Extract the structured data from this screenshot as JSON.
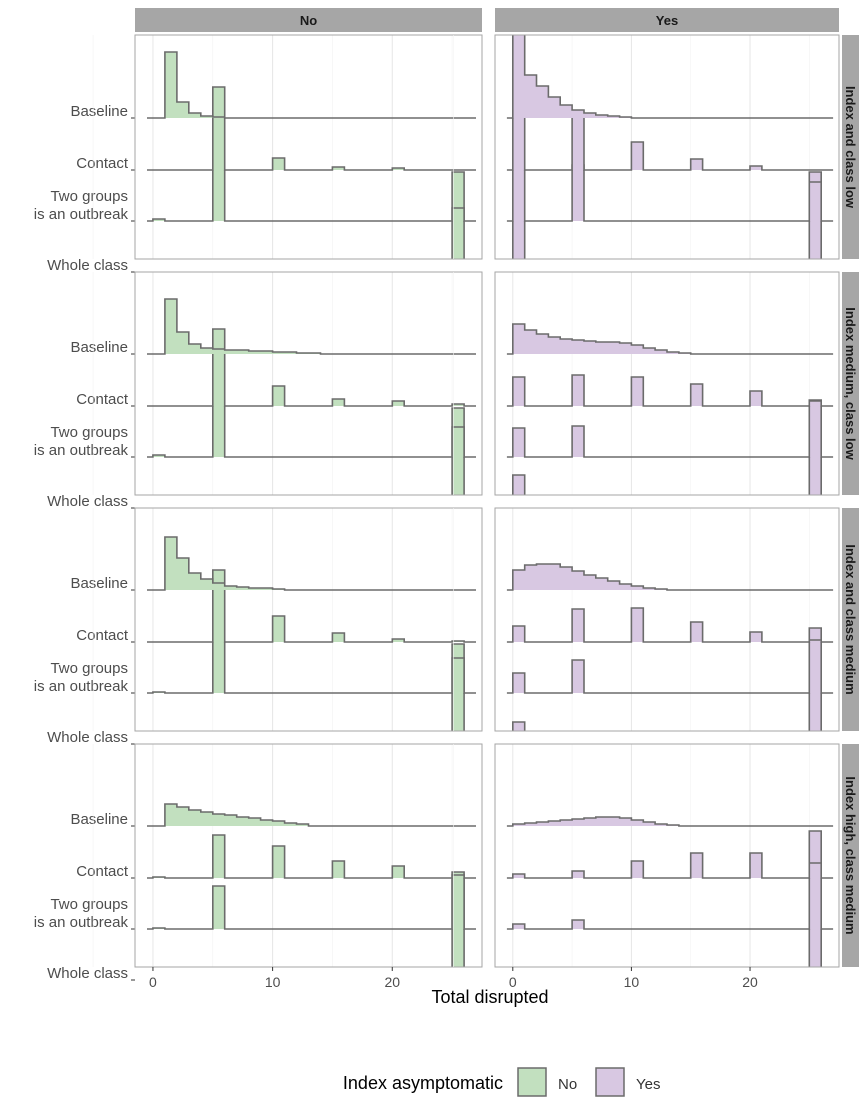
{
  "chart_data": {
    "type": "ridgeline-step-histogram",
    "xlabel": "Total disrupted",
    "x_ticks": [
      0,
      10,
      20
    ],
    "xlim": [
      -1.5,
      27.5
    ],
    "bin_width": 1,
    "columns": [
      "No",
      "Yes"
    ],
    "rows": [
      "Index and class low",
      "Index medium, class low",
      "Index and class medium",
      "Index high, class medium"
    ],
    "y_categories": [
      "Baseline",
      "Contact",
      "Two groups\nis an outbreak",
      "Whole class"
    ],
    "legend": {
      "title": "Index asymptomatic",
      "position": "bottom",
      "items": [
        "No",
        "Yes"
      ]
    },
    "colors": {
      "No": "#c2e0bf",
      "Yes": "#d8c8e2",
      "line": "#6b6b6b",
      "strip": "#a6a6a6",
      "grid": "#e6e6e6",
      "panel_border": "#a6a6a6"
    },
    "panels": [
      {
        "row": "Index and class low",
        "col": "No",
        "series": {
          "Whole class": [
            [
              1,
              0.02
            ],
            [
              26,
              1.0
            ]
          ],
          "Two groups\nis an outbreak": [
            [
              1,
              0.02
            ],
            [
              6,
              0.83
            ],
            [
              26,
              0.13
            ]
          ],
          "Contact": [
            [
              6,
              0.83
            ],
            [
              11,
              0.12
            ],
            [
              16,
              0.03
            ],
            [
              21,
              0.02
            ]
          ],
          "Baseline": [
            [
              2,
              0.66
            ],
            [
              3,
              0.16
            ],
            [
              4,
              0.05
            ],
            [
              5,
              0.02
            ],
            [
              6,
              0.01
            ]
          ]
        }
      },
      {
        "row": "Index and class low",
        "col": "Yes",
        "series": {
          "Whole class": [
            [
              1,
              1.0
            ],
            [
              26,
              1.0
            ]
          ],
          "Two groups\nis an outbreak": [
            [
              1,
              1.0
            ],
            [
              6,
              0.56
            ],
            [
              26,
              0.39
            ]
          ],
          "Contact": [
            [
              1,
              1.0
            ],
            [
              6,
              0.56
            ],
            [
              11,
              0.28
            ],
            [
              16,
              0.11
            ],
            [
              21,
              0.04
            ]
          ],
          "Baseline": [
            [
              1,
              1.0
            ],
            [
              2,
              0.43
            ],
            [
              3,
              0.32
            ],
            [
              4,
              0.21
            ],
            [
              5,
              0.13
            ],
            [
              6,
              0.08
            ],
            [
              7,
              0.05
            ],
            [
              8,
              0.03
            ],
            [
              9,
              0.02
            ],
            [
              10,
              0.01
            ]
          ]
        }
      },
      {
        "row": "Index medium, class low",
        "col": "No",
        "series": {
          "Whole class": [
            [
              1,
              0.02
            ],
            [
              26,
              1.0
            ]
          ],
          "Two groups\nis an outbreak": [
            [
              1,
              0.02
            ],
            [
              6,
              0.77
            ],
            [
              26,
              0.3
            ]
          ],
          "Contact": [
            [
              6,
              0.77
            ],
            [
              11,
              0.2
            ],
            [
              16,
              0.07
            ],
            [
              21,
              0.05
            ],
            [
              26,
              0.02
            ]
          ],
          "Baseline": [
            [
              2,
              0.55
            ],
            [
              3,
              0.22
            ],
            [
              4,
              0.1
            ],
            [
              5,
              0.06
            ],
            [
              6,
              0.05
            ],
            [
              7,
              0.04
            ],
            [
              8,
              0.04
            ],
            [
              9,
              0.03
            ],
            [
              10,
              0.03
            ],
            [
              11,
              0.02
            ],
            [
              12,
              0.02
            ],
            [
              13,
              0.01
            ],
            [
              14,
              0.01
            ]
          ]
        }
      },
      {
        "row": "Index medium, class low",
        "col": "Yes",
        "series": {
          "Whole class": [
            [
              1,
              0.33
            ],
            [
              26,
              1.0
            ]
          ],
          "Two groups\nis an outbreak": [
            [
              1,
              0.29
            ],
            [
              6,
              0.31
            ],
            [
              26,
              0.57
            ]
          ],
          "Contact": [
            [
              1,
              0.29
            ],
            [
              6,
              0.31
            ],
            [
              11,
              0.29
            ],
            [
              16,
              0.22
            ],
            [
              21,
              0.15
            ],
            [
              26,
              0.05
            ]
          ],
          "Baseline": [
            [
              1,
              0.3
            ],
            [
              2,
              0.24
            ],
            [
              3,
              0.2
            ],
            [
              4,
              0.17
            ],
            [
              5,
              0.15
            ],
            [
              6,
              0.14
            ],
            [
              7,
              0.13
            ],
            [
              8,
              0.12
            ],
            [
              9,
              0.12
            ],
            [
              10,
              0.11
            ],
            [
              11,
              0.09
            ],
            [
              12,
              0.06
            ],
            [
              13,
              0.04
            ],
            [
              14,
              0.02
            ],
            [
              15,
              0.01
            ]
          ]
        }
      },
      {
        "row": "Index and class medium",
        "col": "No",
        "series": {
          "Whole class": [
            [
              1,
              0.02
            ],
            [
              26,
              1.0
            ]
          ],
          "Two groups\nis an outbreak": [
            [
              1,
              0.01
            ],
            [
              6,
              0.72
            ],
            [
              26,
              0.35
            ]
          ],
          "Contact": [
            [
              6,
              0.72
            ],
            [
              11,
              0.26
            ],
            [
              16,
              0.09
            ],
            [
              21,
              0.03
            ],
            [
              26,
              0.01
            ]
          ],
          "Baseline": [
            [
              2,
              0.53
            ],
            [
              3,
              0.32
            ],
            [
              4,
              0.17
            ],
            [
              5,
              0.11
            ],
            [
              6,
              0.07
            ],
            [
              7,
              0.04
            ],
            [
              8,
              0.03
            ],
            [
              9,
              0.02
            ],
            [
              10,
              0.02
            ],
            [
              11,
              0.01
            ]
          ]
        }
      },
      {
        "row": "Index and class medium",
        "col": "Yes",
        "series": {
          "Whole class": [
            [
              1,
              0.22
            ],
            [
              26,
              1.0
            ]
          ],
          "Two groups\nis an outbreak": [
            [
              1,
              0.2
            ],
            [
              6,
              0.33
            ],
            [
              26,
              0.65
            ]
          ],
          "Contact": [
            [
              1,
              0.16
            ],
            [
              6,
              0.33
            ],
            [
              11,
              0.34
            ],
            [
              16,
              0.2
            ],
            [
              21,
              0.1
            ],
            [
              26,
              0.02
            ]
          ],
          "Baseline": [
            [
              1,
              0.2
            ],
            [
              2,
              0.25
            ],
            [
              3,
              0.26
            ],
            [
              4,
              0.26
            ],
            [
              5,
              0.23
            ],
            [
              6,
              0.19
            ],
            [
              7,
              0.15
            ],
            [
              8,
              0.12
            ],
            [
              9,
              0.09
            ],
            [
              10,
              0.06
            ],
            [
              11,
              0.04
            ],
            [
              12,
              0.02
            ],
            [
              13,
              0.01
            ]
          ]
        }
      },
      {
        "row": "Index high, class medium",
        "col": "No",
        "series": {
          "Whole class": [
            [
              26,
              1.0
            ]
          ],
          "Two groups\nis an outbreak": [
            [
              1,
              0.01
            ],
            [
              6,
              0.43
            ],
            [
              26,
              0.57
            ]
          ],
          "Contact": [
            [
              1,
              0.01
            ],
            [
              6,
              0.43
            ],
            [
              11,
              0.32
            ],
            [
              16,
              0.17
            ],
            [
              21,
              0.12
            ],
            [
              26,
              0.03
            ]
          ],
          "Baseline": [
            [
              2,
              0.22
            ],
            [
              3,
              0.19
            ],
            [
              4,
              0.16
            ],
            [
              5,
              0.14
            ],
            [
              6,
              0.12
            ],
            [
              7,
              0.11
            ],
            [
              8,
              0.09
            ],
            [
              9,
              0.08
            ],
            [
              10,
              0.06
            ],
            [
              11,
              0.05
            ],
            [
              12,
              0.03
            ],
            [
              13,
              0.02
            ]
          ]
        }
      },
      {
        "row": "Index high, class medium",
        "col": "Yes",
        "series": {
          "Whole class": [
            [
              1,
              0.06
            ],
            [
              26,
              1.0
            ]
          ],
          "Two groups\nis an outbreak": [
            [
              1,
              0.05
            ],
            [
              6,
              0.09
            ],
            [
              26,
              0.98
            ]
          ],
          "Contact": [
            [
              1,
              0.04
            ],
            [
              6,
              0.07
            ],
            [
              11,
              0.17
            ],
            [
              16,
              0.25
            ],
            [
              21,
              0.25
            ],
            [
              26,
              0.15
            ]
          ],
          "Baseline": [
            [
              1,
              0.02
            ],
            [
              2,
              0.03
            ],
            [
              3,
              0.04
            ],
            [
              4,
              0.05
            ],
            [
              5,
              0.06
            ],
            [
              6,
              0.07
            ],
            [
              7,
              0.08
            ],
            [
              8,
              0.09
            ],
            [
              9,
              0.09
            ],
            [
              10,
              0.08
            ],
            [
              11,
              0.06
            ],
            [
              12,
              0.04
            ],
            [
              13,
              0.02
            ],
            [
              14,
              0.01
            ]
          ]
        }
      }
    ]
  }
}
